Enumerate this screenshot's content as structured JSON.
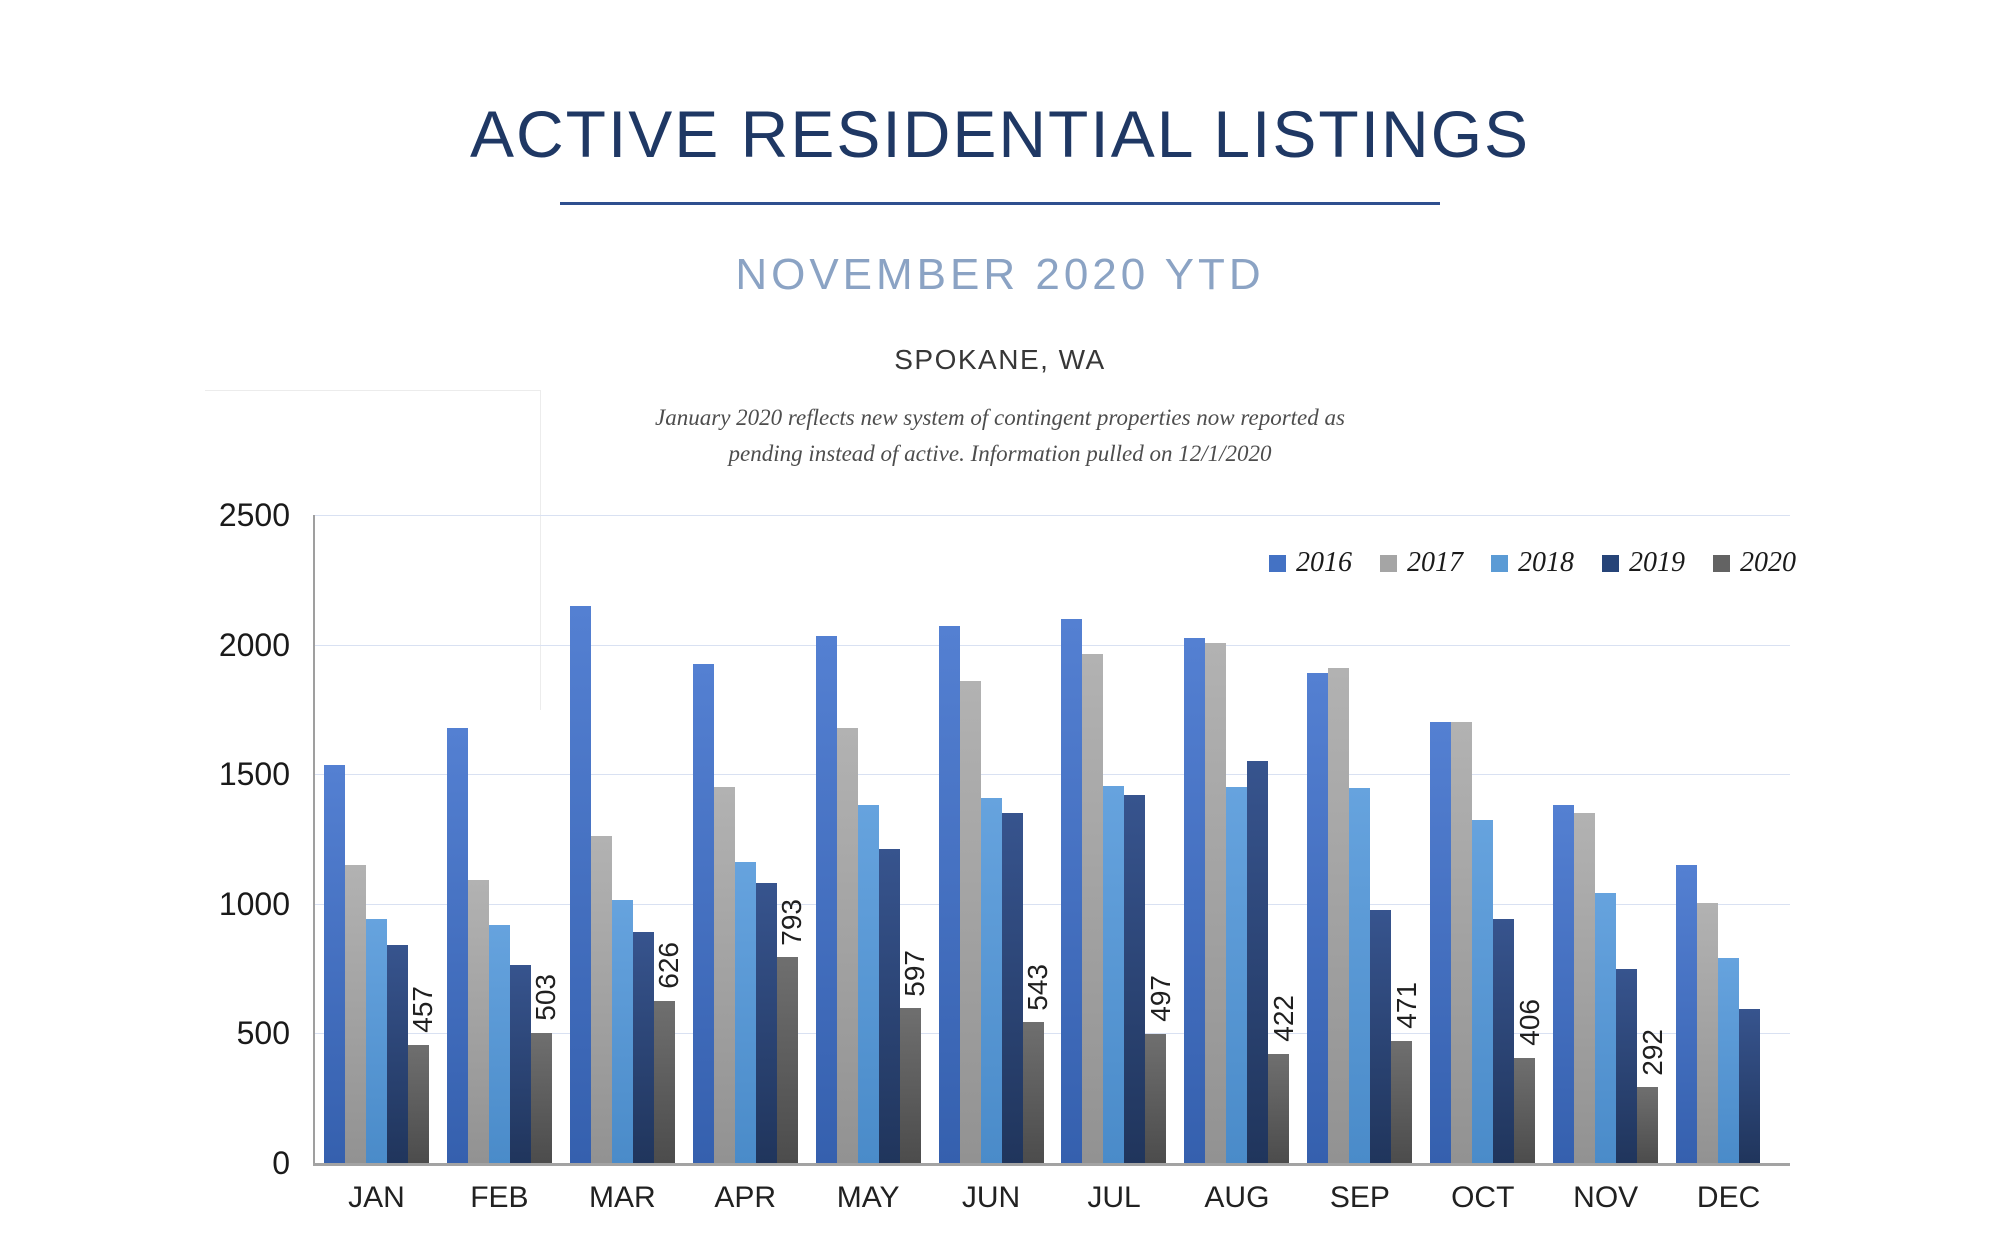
{
  "header": {
    "title": "ACTIVE RESIDENTIAL LISTINGS",
    "subtitle": "NOVEMBER 2020 YTD",
    "location": "SPOKANE, WA",
    "note_line1": "January 2020 reflects new system of contingent properties now reported as",
    "note_line2": "pending instead of active.  Information pulled on 12/1/2020"
  },
  "colors": {
    "title_navy": "#1f3864",
    "subtitle_blue": "#8ba3c4",
    "gridline": "#d9e1f2",
    "axis_line": "#9f9f9f"
  },
  "chart_data": {
    "type": "bar",
    "title": "ACTIVE RESIDENTIAL LISTINGS",
    "subtitle": "NOVEMBER 2020 YTD",
    "categories": [
      "JAN",
      "FEB",
      "MAR",
      "APR",
      "MAY",
      "JUN",
      "JUL",
      "AUG",
      "SEP",
      "OCT",
      "NOV",
      "DEC"
    ],
    "series": [
      {
        "name": "2016",
        "color": "#4472C4",
        "color_top": "#5480d2",
        "color_bottom": "#3560ae",
        "values": [
          1535,
          1680,
          2150,
          1925,
          2035,
          2070,
          2100,
          2025,
          1890,
          1700,
          1380,
          1150
        ]
      },
      {
        "name": "2017",
        "color": "#A5A5A5",
        "color_top": "#b2b2b2",
        "color_bottom": "#929292",
        "values": [
          1150,
          1090,
          1260,
          1450,
          1680,
          1860,
          1965,
          2005,
          1910,
          1700,
          1350,
          1005
        ]
      },
      {
        "name": "2018",
        "color": "#5B9BD5",
        "color_top": "#66a3de",
        "color_bottom": "#4a8bc9",
        "values": [
          940,
          920,
          1015,
          1160,
          1380,
          1410,
          1455,
          1450,
          1445,
          1325,
          1040,
          790
        ]
      },
      {
        "name": "2019",
        "color": "#264478",
        "color_top": "#37548e",
        "color_bottom": "#20355c",
        "values": [
          840,
          765,
          890,
          1080,
          1210,
          1350,
          1420,
          1550,
          975,
          940,
          750,
          595
        ]
      },
      {
        "name": "2020",
        "color": "#636363",
        "color_top": "#6f6f6f",
        "color_bottom": "#4c4c4c",
        "values": [
          457,
          503,
          626,
          793,
          597,
          543,
          497,
          422,
          471,
          406,
          292,
          null
        ],
        "show_labels": true
      }
    ],
    "data_labels": [
      "457",
      "503",
      "626",
      "793",
      "597",
      "543",
      "497",
      "422",
      "471",
      "406",
      "292",
      ""
    ],
    "ylim": [
      0,
      2500
    ],
    "yticks": [
      0,
      500,
      1000,
      1500,
      2000,
      2500
    ],
    "grid": true,
    "legend_position": "top-right"
  }
}
